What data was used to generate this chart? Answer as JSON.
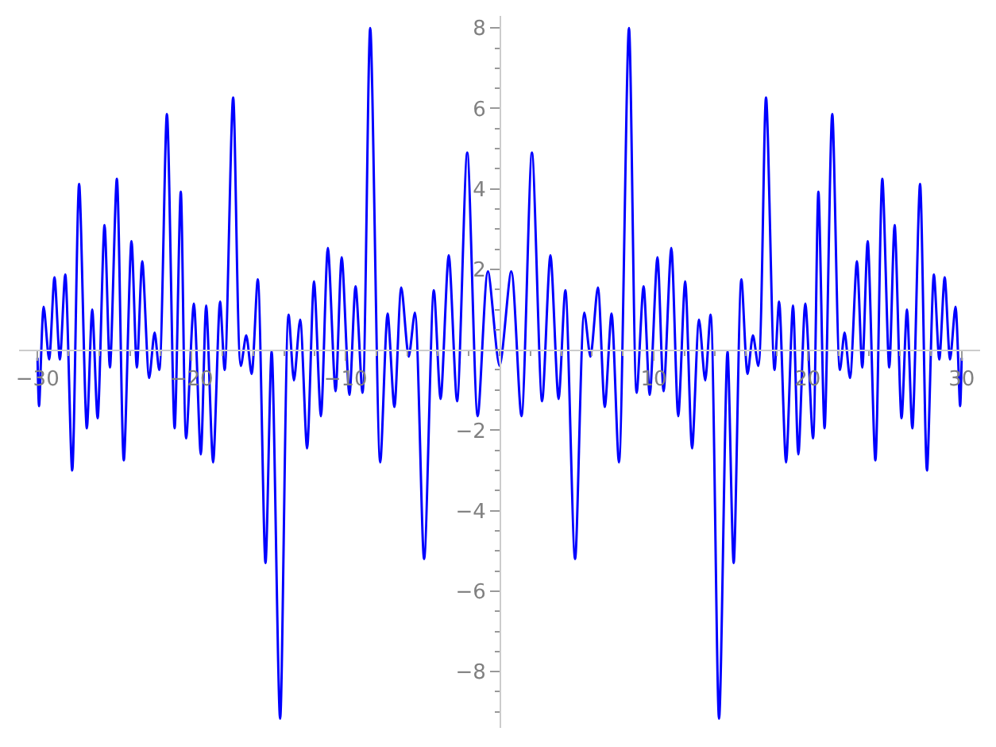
{
  "chart_data": {
    "type": "line",
    "marker": "none",
    "line_style": "solid",
    "xlim": [
      -31.2,
      31.2
    ],
    "ylim": [
      -9.4,
      8.3
    ],
    "xticks": [
      {
        "value": -30,
        "label": "−30"
      },
      {
        "value": -20,
        "label": "−20"
      },
      {
        "value": -10,
        "label": "−10"
      },
      10,
      20,
      30
    ],
    "yticks": [
      {
        "value": -8,
        "label": "−8"
      },
      {
        "value": -6,
        "label": "−6"
      },
      {
        "value": -4,
        "label": "−4"
      },
      {
        "value": -2,
        "label": "−2"
      },
      2,
      4,
      6,
      8
    ],
    "x": [
      -30,
      -29.9,
      -29.6,
      -29.25,
      -28.9,
      -28.55,
      -28.2,
      -27.75,
      -27.3,
      -26.8,
      -26.45,
      -26.1,
      -25.65,
      -25.3,
      -24.85,
      -24.4,
      -23.9,
      -23.55,
      -23.2,
      -22.75,
      -22.4,
      -22.1,
      -21.6,
      -21.1,
      -20.7,
      -20.35,
      -19.85,
      -19.4,
      -19.05,
      -18.6,
      -18.15,
      -17.85,
      -17.3,
      -16.8,
      -16.45,
      -16.1,
      -15.7,
      -15.2,
      -14.8,
      -14.25,
      -13.7,
      -13.35,
      -12.95,
      -12.5,
      -12.05,
      -11.6,
      -11.15,
      -10.65,
      -10.25,
      -9.75,
      -9.35,
      -8.9,
      -8.4,
      -7.75,
      -7.27,
      -6.83,
      -6.38,
      -5.9,
      -5.5,
      -4.9,
      -4.27,
      -3.83,
      -3.3,
      -2.76,
      -2.1,
      -1.42,
      -0.76,
      0,
      0.76,
      1.42,
      2.1,
      2.76,
      3.3,
      3.83,
      4.27,
      4.9,
      5.5,
      5.9,
      6.38,
      6.83,
      7.27,
      7.75,
      8.4,
      8.9,
      9.35,
      9.75,
      10.25,
      10.65,
      11.15,
      11.6,
      12.05,
      12.5,
      12.95,
      13.35,
      13.7,
      14.25,
      14.8,
      15.2,
      15.7,
      16.1,
      16.45,
      16.8,
      17.3,
      17.85,
      18.15,
      18.6,
      19.05,
      19.4,
      19.85,
      20.35,
      20.7,
      21.1,
      21.6,
      22.1,
      22.4,
      22.75,
      23.2,
      23.55,
      23.9,
      24.4,
      24.85,
      25.3,
      25.65,
      26.1,
      26.45,
      26.8,
      27.3,
      27.75,
      28.2,
      28.55,
      28.9,
      29.25,
      29.6,
      29.9,
      30
    ],
    "series": [
      {
        "color": "#0000ff",
        "values": [
          -0.2,
          -1.4,
          1.07,
          -0.24,
          1.8,
          -0.24,
          1.87,
          -3.0,
          4.12,
          -1.95,
          1.0,
          -1.7,
          3.1,
          -0.44,
          4.25,
          -2.75,
          2.7,
          -0.44,
          2.2,
          -0.7,
          0.43,
          -0.5,
          5.86,
          -1.95,
          3.93,
          -2.2,
          1.15,
          -2.6,
          1.1,
          -2.8,
          1.2,
          -0.5,
          6.27,
          -0.4,
          0.36,
          -0.6,
          1.75,
          -5.3,
          -0.04,
          -9.17,
          0.87,
          -0.76,
          0.75,
          -2.45,
          1.7,
          -1.65,
          2.53,
          -1.03,
          2.3,
          -1.12,
          1.58,
          -1.07,
          8.0,
          -2.8,
          0.9,
          -1.42,
          1.55,
          -0.17,
          0.92,
          -5.2,
          1.48,
          -1.22,
          2.35,
          -1.28,
          4.9,
          -1.65,
          1.95,
          -0.4,
          1.95,
          -1.65,
          4.9,
          -1.28,
          2.35,
          -1.22,
          1.48,
          -5.2,
          0.92,
          -0.17,
          1.55,
          -1.42,
          0.9,
          -2.8,
          8.0,
          -1.07,
          1.58,
          -1.12,
          2.3,
          -1.03,
          2.53,
          -1.65,
          1.7,
          -2.45,
          0.75,
          -0.76,
          0.87,
          -9.17,
          -0.04,
          -5.3,
          1.75,
          -0.6,
          0.36,
          -0.4,
          6.27,
          -0.5,
          1.2,
          -2.8,
          1.1,
          -2.6,
          1.15,
          -2.2,
          3.93,
          -1.95,
          5.86,
          -0.5,
          0.43,
          -0.7,
          2.2,
          -0.44,
          2.7,
          -2.75,
          4.25,
          -0.44,
          3.1,
          -1.7,
          1.0,
          -1.95,
          4.12,
          -3.0,
          1.87,
          -0.24,
          1.8,
          -0.24,
          1.07,
          -1.4,
          -0.2
        ]
      }
    ]
  }
}
